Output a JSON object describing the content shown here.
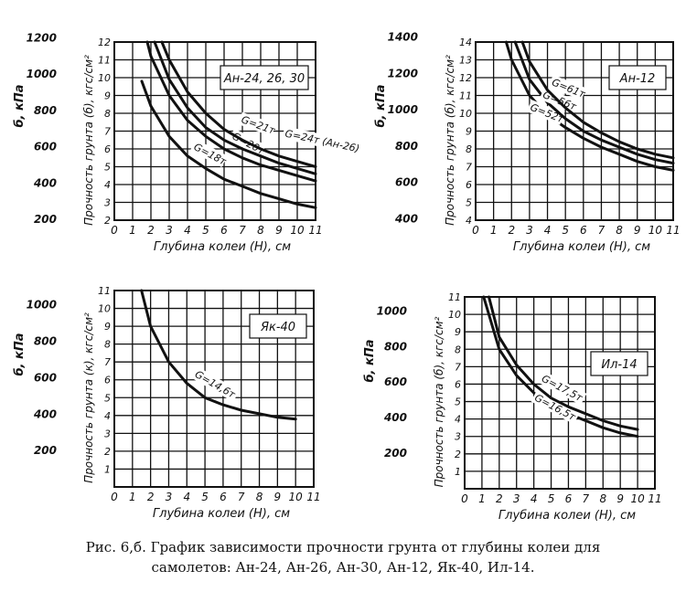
{
  "caption": {
    "line1": "Рис. 6,б. График зависимости прочности грунта от глубины колеи для",
    "line2": "самолетов: Ан-24, Ан-26, Ан-30, Ан-12, Як-40, Ил-14."
  },
  "colors": {
    "ink": "#111111",
    "paper": "#ffffff"
  },
  "chart_data": [
    {
      "type": "line",
      "legend": "Ан-24, 26, 30",
      "xlabel": "Глубина колеи (H), см",
      "ylabel": "Прочность грунта (б), кгс/см²",
      "y2label": "б, кПа",
      "xlim": [
        0,
        11
      ],
      "ylim": [
        2,
        12
      ],
      "x_ticks": [
        "0",
        "1",
        "2",
        "3",
        "4",
        "5",
        "6",
        "7",
        "8",
        "9",
        "10",
        "11"
      ],
      "y_ticks": [
        "2",
        "3",
        "4",
        "5",
        "6",
        "7",
        "8",
        "9",
        "10",
        "11",
        "12"
      ],
      "kpa_ticks": [
        {
          "v": 200,
          "label": "200"
        },
        {
          "v": 400,
          "label": "400"
        },
        {
          "v": 600,
          "label": "600"
        },
        {
          "v": 800,
          "label": "800"
        },
        {
          "v": 1000,
          "label": "1000"
        },
        {
          "v": 1200,
          "label": "1200"
        }
      ],
      "kpa_per_unit": 98.07,
      "grid": true,
      "series": [
        {
          "name": "G=18т",
          "label_at": [
            4.3,
            6.0
          ],
          "label_angle": 28,
          "x": [
            1.5,
            2,
            3,
            4,
            5,
            6,
            7,
            8,
            9,
            10,
            11
          ],
          "y": [
            9.8,
            8.4,
            6.7,
            5.6,
            4.9,
            4.3,
            3.9,
            3.5,
            3.2,
            2.9,
            2.7
          ]
        },
        {
          "name": "G=20т",
          "label_at": [
            6.4,
            6.6
          ],
          "label_angle": 28,
          "x": [
            1.8,
            2,
            3,
            4,
            5,
            6,
            7,
            8,
            9,
            10,
            11
          ],
          "y": [
            12.0,
            11.2,
            9.0,
            7.6,
            6.7,
            6.0,
            5.5,
            5.1,
            4.8,
            4.5,
            4.2
          ]
        },
        {
          "name": "G=21т",
          "label_at": [
            6.9,
            7.5
          ],
          "label_angle": 20,
          "x": [
            2.2,
            3,
            4,
            5,
            6,
            7,
            8,
            9,
            10,
            11
          ],
          "y": [
            12.0,
            9.9,
            8.3,
            7.2,
            6.5,
            6.0,
            5.6,
            5.2,
            4.9,
            4.6
          ]
        },
        {
          "name": "G=24т (Ан-26)",
          "label_at": [
            9.3,
            6.7
          ],
          "label_angle": 12,
          "x": [
            2.6,
            3,
            4,
            5,
            6,
            7,
            8,
            9,
            10,
            11
          ],
          "y": [
            12.0,
            11.0,
            9.2,
            8.0,
            7.1,
            6.5,
            6.0,
            5.6,
            5.3,
            5.0
          ]
        }
      ]
    },
    {
      "type": "line",
      "legend": "Ан-12",
      "xlabel": "Глубина колеи (H), см",
      "ylabel": "Прочность грунта (б), кгс/см²",
      "y2label": "б, кПа",
      "xlim": [
        0,
        11
      ],
      "ylim": [
        4,
        14
      ],
      "x_ticks": [
        "0",
        "1",
        "2",
        "3",
        "4",
        "5",
        "6",
        "7",
        "8",
        "9",
        "10",
        "11"
      ],
      "y_ticks": [
        "4",
        "5",
        "6",
        "7",
        "8",
        "9",
        "10",
        "11",
        "12",
        "13",
        "14"
      ],
      "kpa_ticks": [
        {
          "v": 400,
          "label": "400"
        },
        {
          "v": 600,
          "label": "600"
        },
        {
          "v": 800,
          "label": "800"
        },
        {
          "v": 1000,
          "label": "1000"
        },
        {
          "v": 1200,
          "label": "1200"
        },
        {
          "v": 1400,
          "label": "1400"
        }
      ],
      "kpa_per_unit": 98.07,
      "grid": true,
      "series": [
        {
          "name": "G=52т",
          "label_at": [
            3.0,
            10.2
          ],
          "label_angle": 22,
          "x": [
            1.7,
            2,
            3,
            4,
            5,
            6,
            7,
            8,
            9,
            10,
            11
          ],
          "y": [
            14.0,
            13.0,
            11.0,
            9.9,
            9.2,
            8.6,
            8.1,
            7.7,
            7.3,
            7.0,
            6.8
          ]
        },
        {
          "name": "G=56т",
          "label_at": [
            3.7,
            10.9
          ],
          "label_angle": 22,
          "x": [
            2.2,
            3,
            4,
            5,
            6,
            7,
            8,
            9,
            10,
            11
          ],
          "y": [
            14.0,
            11.9,
            10.6,
            9.7,
            9.0,
            8.5,
            8.1,
            7.7,
            7.4,
            7.2
          ]
        },
        {
          "name": "G=61т",
          "label_at": [
            4.2,
            11.6
          ],
          "label_angle": 22,
          "x": [
            2.6,
            3,
            4,
            5,
            6,
            7,
            8,
            9,
            10,
            11
          ],
          "y": [
            14.0,
            12.9,
            11.3,
            10.3,
            9.5,
            8.9,
            8.4,
            8.0,
            7.7,
            7.5
          ]
        }
      ]
    },
    {
      "type": "line",
      "legend": "Як-40",
      "xlabel": "Глубина колеи (H), см",
      "ylabel": "Прочность грунта (к), кгс/см²",
      "y2label": "б, кПа",
      "xlim": [
        0,
        11
      ],
      "ylim": [
        0,
        11
      ],
      "x_ticks": [
        "0",
        "1",
        "2",
        "3",
        "4",
        "5",
        "6",
        "7",
        "8",
        "9",
        "10",
        "11"
      ],
      "y_ticks": [
        "1",
        "2",
        "3",
        "4",
        "5",
        "6",
        "7",
        "8",
        "9",
        "10",
        "11"
      ],
      "kpa_ticks": [
        {
          "v": 200,
          "label": "200"
        },
        {
          "v": 400,
          "label": "400"
        },
        {
          "v": 600,
          "label": "600"
        },
        {
          "v": 800,
          "label": "800"
        },
        {
          "v": 1000,
          "label": "1000"
        }
      ],
      "kpa_per_unit": 98.07,
      "grid": true,
      "series": [
        {
          "name": "G=14,6т",
          "label_at": [
            4.4,
            6.2
          ],
          "label_angle": 30,
          "x": [
            1.5,
            2,
            3,
            4,
            5,
            6,
            7,
            8,
            9,
            10
          ],
          "y": [
            11.0,
            9.0,
            7.0,
            5.8,
            5.0,
            4.6,
            4.3,
            4.1,
            3.9,
            3.8
          ]
        }
      ]
    },
    {
      "type": "line",
      "legend": "Ил-14",
      "xlabel": "Глубина колеи (H), см",
      "ylabel": "Прочность грунта (б), кгс/см²",
      "y2label": "б, кПа",
      "xlim": [
        0,
        11
      ],
      "ylim": [
        0,
        11
      ],
      "x_ticks": [
        "0",
        "1",
        "2",
        "3",
        "4",
        "5",
        "6",
        "7",
        "8",
        "9",
        "10",
        "11"
      ],
      "y_ticks": [
        "1",
        "2",
        "3",
        "4",
        "5",
        "6",
        "7",
        "8",
        "9",
        "10",
        "11"
      ],
      "kpa_ticks": [
        {
          "v": 200,
          "label": "200"
        },
        {
          "v": 400,
          "label": "400"
        },
        {
          "v": 600,
          "label": "600"
        },
        {
          "v": 800,
          "label": "800"
        },
        {
          "v": 1000,
          "label": "1000"
        }
      ],
      "kpa_per_unit": 98.07,
      "grid": true,
      "series": [
        {
          "name": "G=16,5т",
          "label_at": [
            4.0,
            5.1
          ],
          "label_angle": 28,
          "x": [
            1.1,
            2,
            3,
            4,
            5,
            6,
            7,
            8,
            9,
            10
          ],
          "y": [
            11.0,
            8.0,
            6.5,
            5.5,
            4.8,
            4.3,
            3.9,
            3.5,
            3.2,
            3.0
          ]
        },
        {
          "name": "G=17,5т",
          "label_at": [
            4.4,
            6.2
          ],
          "label_angle": 28,
          "x": [
            1.4,
            2,
            3,
            4,
            5,
            6,
            7,
            8,
            9,
            10
          ],
          "y": [
            11.0,
            8.7,
            7.1,
            6.0,
            5.2,
            4.7,
            4.3,
            3.9,
            3.6,
            3.4
          ]
        }
      ]
    }
  ]
}
